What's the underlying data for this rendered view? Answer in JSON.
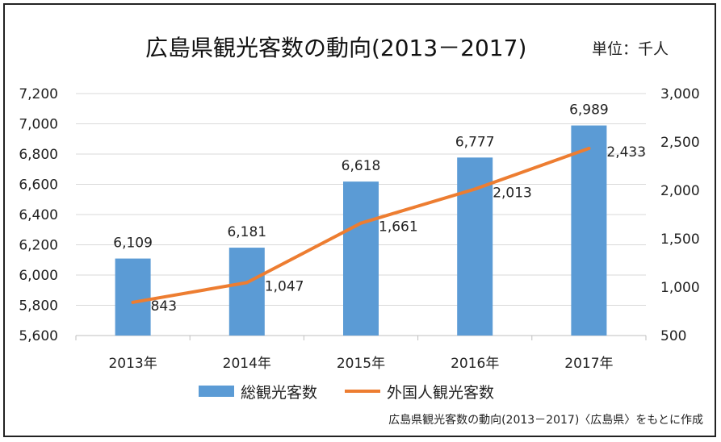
{
  "title": "広島県観光客数の動向(2013－2017)",
  "unit_label": "単位：千人",
  "source": "広島県観光客数の動向(2013－2017)〈広島県〉をもとに作成",
  "chart_data": {
    "type": "bar",
    "categories": [
      "2013年",
      "2014年",
      "2015年",
      "2016年",
      "2017年"
    ],
    "series": [
      {
        "name": "総観光客数",
        "type": "bar",
        "axis": "left",
        "color": "#5b9bd5",
        "values": [
          6109,
          6181,
          6618,
          6777,
          6989
        ],
        "labels": [
          "6,109",
          "6,181",
          "6,618",
          "6,777",
          "6,989"
        ]
      },
      {
        "name": "外国人観光客数",
        "type": "line",
        "axis": "right",
        "color": "#ed7d31",
        "values": [
          843,
          1047,
          1661,
          2013,
          2433
        ],
        "labels": [
          "843",
          "1,047",
          "1,661",
          "2,013",
          "2,433"
        ]
      }
    ],
    "y_left": {
      "range": [
        5600,
        7200
      ],
      "ticks": [
        "5,600",
        "5,800",
        "6,000",
        "6,200",
        "6,400",
        "6,600",
        "6,800",
        "7,000",
        "7,200"
      ]
    },
    "y_right": {
      "range": [
        500,
        3000
      ],
      "ticks": [
        "500",
        "1,000",
        "1,500",
        "2,000",
        "2,500",
        "3,000"
      ]
    },
    "grid": true,
    "legend_position": "bottom"
  }
}
